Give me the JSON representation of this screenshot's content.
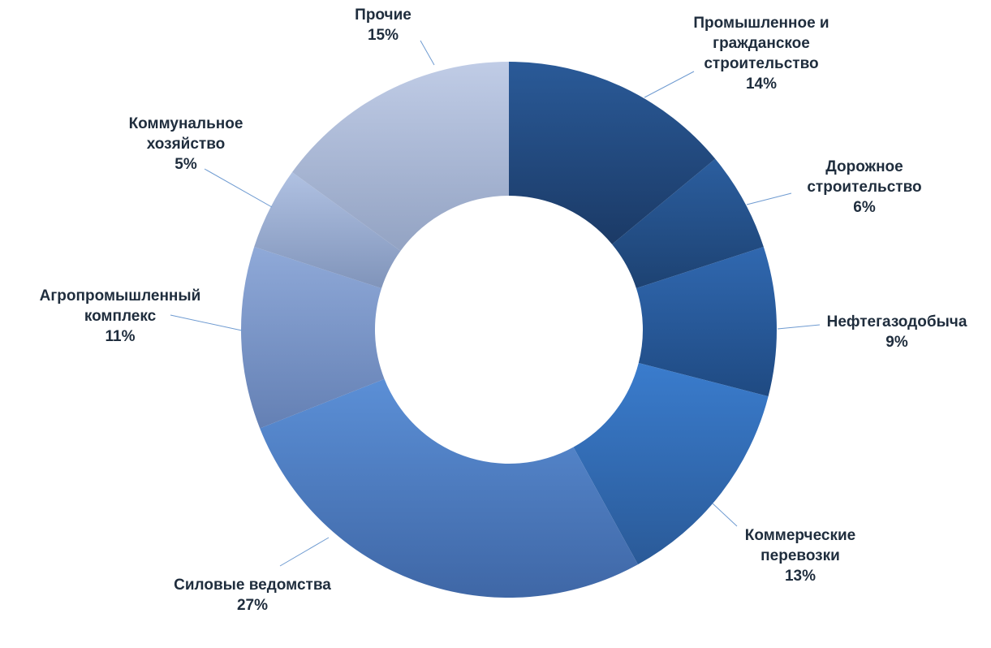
{
  "chart_data": {
    "type": "pie",
    "variant": "donut",
    "title": "",
    "legend": "none",
    "slices": [
      {
        "label": "Промышленное и гражданское строительство",
        "lines": [
          "Промышленное и",
          "гражданское",
          "строительство"
        ],
        "value": 14,
        "value_label": "14%",
        "color_top": "#2a5a98",
        "color_bottom": "#1b3a66"
      },
      {
        "label": "Дорожное строительство",
        "lines": [
          "Дорожное",
          "строительство"
        ],
        "value": 6,
        "value_label": "6%",
        "color_top": "#2b5e9f",
        "color_bottom": "#1d4272"
      },
      {
        "label": "Нефтегазодобыча",
        "lines": [
          "Нефтегазодобыча"
        ],
        "value": 9,
        "value_label": "9%",
        "color_top": "#3068b0",
        "color_bottom": "#1f4a82"
      },
      {
        "label": "Коммерческие перевозки",
        "lines": [
          "Коммерческие",
          "перевозки"
        ],
        "value": 13,
        "value_label": "13%",
        "color_top": "#3a7ccd",
        "color_bottom": "#2a5a98"
      },
      {
        "label": "Силовые ведомства",
        "lines": [
          "Силовые ведомства"
        ],
        "value": 27,
        "value_label": "27%",
        "color_top": "#5b8fd6",
        "color_bottom": "#3f67a6"
      },
      {
        "label": "Агропромышленный комплекс",
        "lines": [
          "Агропромышленный",
          "комплекс"
        ],
        "value": 11,
        "value_label": "11%",
        "color_top": "#8fa9d8",
        "color_bottom": "#6480b4"
      },
      {
        "label": "Коммунальное хозяйство",
        "lines": [
          "Коммунальное",
          "хозяйство"
        ],
        "value": 5,
        "value_label": "5%",
        "color_top": "#b0c1e2",
        "color_bottom": "#8094ba"
      },
      {
        "label": "Прочие",
        "lines": [
          "Прочие"
        ],
        "value": 15,
        "value_label": "15%",
        "color_top": "#c0cce6",
        "color_bottom": "#93a3c3"
      }
    ]
  }
}
